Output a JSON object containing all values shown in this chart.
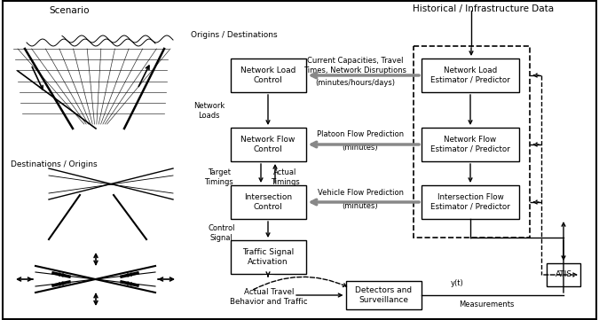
{
  "bg_color": "#ffffff",
  "scenario_label": "Scenario",
  "origins_label": "Origins / Destinations",
  "destinations_label": "Destinations / Origins",
  "hist_label": "Historical / Infrastructure Data",
  "nlc_text": "Network Load\nControl",
  "nfc_text": "Network Flow\nControl",
  "ic_text": "Intersection\nControl",
  "tsa_text": "Traffic Signal\nActivation",
  "ds_text": "Detectors and\nSurveillance",
  "nle_text": "Network Load\nEstimator / Predictor",
  "nfe_text": "Network Flow\nEstimator / Predictor",
  "ife_text": "Intersection Flow\nEstimator / Predictor",
  "atis_text": "ATIS",
  "cloud_text": "Actual Travel\nBehavior and Traffic",
  "lbl_current_cap": "Current Capacities, Travel\nTimes, Network Disruptions",
  "lbl_minhrs": "(minutes/hours/days)",
  "lbl_netloads": "Network\nLoads",
  "lbl_platoon": "Platoon Flow Prediction",
  "lbl_min1": "(minutes)",
  "lbl_target": "Target\nTimings",
  "lbl_actual": "Actual\nTimings",
  "lbl_vehicle": "Vehicle Flow Prediction",
  "lbl_min2": "(minutes)",
  "lbl_control": "Control\nSignal",
  "lbl_yt": "y(t)",
  "lbl_meas": "Measurements"
}
